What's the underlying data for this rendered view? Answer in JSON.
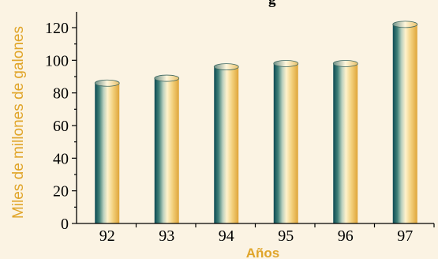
{
  "chart_data": {
    "type": "bar",
    "title": "g",
    "xlabel": "Años",
    "ylabel": "Miles de millones de galones",
    "categories": [
      "92",
      "93",
      "94",
      "95",
      "96",
      "97"
    ],
    "values": [
      86,
      89,
      96,
      98,
      98,
      122
    ],
    "ylim": [
      0,
      130
    ],
    "yticks": [
      "0",
      "20",
      "40",
      "60",
      "80",
      "100",
      "120"
    ],
    "grid": false,
    "legend": "none",
    "colors": {
      "background": "#fbf3e3",
      "bar_dark": "#0d4a52",
      "bar_light": "#fff2cc",
      "bar_gold": "#e3ab3e",
      "axis_title": "#e0a52a"
    }
  }
}
